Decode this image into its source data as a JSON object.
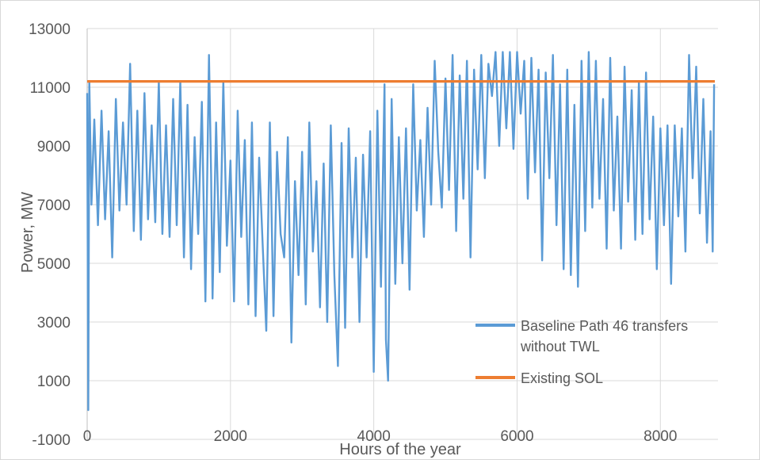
{
  "chart_data": {
    "type": "line",
    "title": "",
    "xlabel": "Hours of the year",
    "ylabel": "Power, MW",
    "xlim": [
      0,
      8760
    ],
    "ylim": [
      -1000,
      13000
    ],
    "x_ticks": [
      0,
      2000,
      4000,
      6000,
      8000
    ],
    "y_ticks": [
      -1000,
      1000,
      3000,
      5000,
      7000,
      9000,
      11000,
      13000
    ],
    "x_tick_labels": [
      "0",
      "2000",
      "4000",
      "6000",
      "8000"
    ],
    "y_tick_labels": [
      "-1000",
      "1000",
      "3000",
      "5000",
      "7000",
      "9000",
      "11000",
      "13000"
    ],
    "grid": "vertical and horizontal",
    "legend_position": "bottom-right",
    "series": [
      {
        "name": "Baseline Path 46 transfers without TWL",
        "color": "#5b9bd5",
        "x": [
          0,
          15,
          30,
          60,
          100,
          150,
          200,
          250,
          300,
          350,
          400,
          450,
          500,
          550,
          600,
          650,
          700,
          750,
          800,
          850,
          900,
          950,
          1000,
          1050,
          1100,
          1150,
          1200,
          1250,
          1300,
          1350,
          1400,
          1450,
          1500,
          1550,
          1600,
          1650,
          1700,
          1730,
          1750,
          1800,
          1850,
          1900,
          1950,
          2000,
          2050,
          2100,
          2150,
          2200,
          2250,
          2300,
          2350,
          2400,
          2450,
          2500,
          2550,
          2600,
          2650,
          2700,
          2750,
          2800,
          2850,
          2900,
          2950,
          3000,
          3050,
          3100,
          3150,
          3200,
          3250,
          3300,
          3350,
          3400,
          3450,
          3500,
          3550,
          3600,
          3650,
          3700,
          3750,
          3800,
          3850,
          3900,
          3950,
          4000,
          4050,
          4100,
          4150,
          4170,
          4200,
          4250,
          4300,
          4350,
          4400,
          4450,
          4500,
          4550,
          4600,
          4650,
          4700,
          4750,
          4800,
          4850,
          4900,
          4950,
          5000,
          5050,
          5100,
          5150,
          5200,
          5250,
          5300,
          5350,
          5400,
          5450,
          5500,
          5550,
          5600,
          5650,
          5700,
          5750,
          5800,
          5850,
          5900,
          5950,
          6000,
          6050,
          6100,
          6150,
          6200,
          6250,
          6300,
          6350,
          6400,
          6450,
          6500,
          6550,
          6600,
          6650,
          6700,
          6750,
          6800,
          6850,
          6900,
          6950,
          7000,
          7050,
          7100,
          7150,
          7200,
          7250,
          7300,
          7350,
          7400,
          7450,
          7500,
          7550,
          7600,
          7650,
          7700,
          7750,
          7800,
          7850,
          7900,
          7950,
          8000,
          8050,
          8100,
          8150,
          8200,
          8250,
          8300,
          8350,
          8400,
          8450,
          8500,
          8550,
          8600,
          8650,
          8700,
          8730,
          8750
        ],
        "y": [
          10800,
          0,
          11200,
          7000,
          9900,
          6300,
          10200,
          6500,
          9500,
          5200,
          10600,
          6800,
          9800,
          7000,
          11800,
          6100,
          10200,
          5800,
          10800,
          6500,
          9700,
          6400,
          11200,
          6000,
          9700,
          5900,
          10600,
          6300,
          11200,
          5200,
          10400,
          4800,
          9300,
          6000,
          10500,
          3700,
          12100,
          8000,
          3800,
          9800,
          4700,
          11200,
          5600,
          8500,
          3700,
          10200,
          5900,
          9200,
          3600,
          9800,
          3200,
          8600,
          5600,
          2700,
          9800,
          3200,
          8800,
          6000,
          5200,
          9300,
          2300,
          7800,
          4600,
          8800,
          3600,
          9800,
          5400,
          7800,
          3500,
          8400,
          3000,
          9700,
          4600,
          1500,
          9100,
          2800,
          9600,
          5200,
          8600,
          3000,
          8700,
          5200,
          9500,
          1300,
          10200,
          4200,
          11100,
          2400,
          1000,
          10600,
          4300,
          9300,
          5000,
          9600,
          4100,
          11100,
          6800,
          9200,
          5900,
          10300,
          7000,
          11900,
          8800,
          6900,
          11300,
          7500,
          12100,
          6100,
          11400,
          7200,
          11900,
          5200,
          11600,
          8200,
          12100,
          7900,
          11800,
          10700,
          12200,
          9000,
          12200,
          9600,
          12200,
          8900,
          12200,
          10100,
          11900,
          7200,
          12000,
          8100,
          11600,
          5100,
          11500,
          7900,
          12100,
          6300,
          11100,
          4800,
          11600,
          4600,
          10400,
          4200,
          11900,
          6100,
          12200,
          6900,
          11900,
          7200,
          10600,
          5500,
          12000,
          6800,
          10000,
          5500,
          11700,
          7100,
          10900,
          5800,
          11200,
          6000,
          11500,
          6500,
          10000,
          4800,
          9600,
          6300,
          9700,
          4300,
          9700,
          6600,
          9600,
          5400,
          12100,
          7900,
          11700,
          6700,
          10600,
          5700,
          9500,
          5400,
          11100
        ]
      },
      {
        "name": "Existing SOL",
        "color": "#ed7d31",
        "x": [
          0,
          8760
        ],
        "y": [
          11200,
          11200
        ]
      }
    ]
  }
}
